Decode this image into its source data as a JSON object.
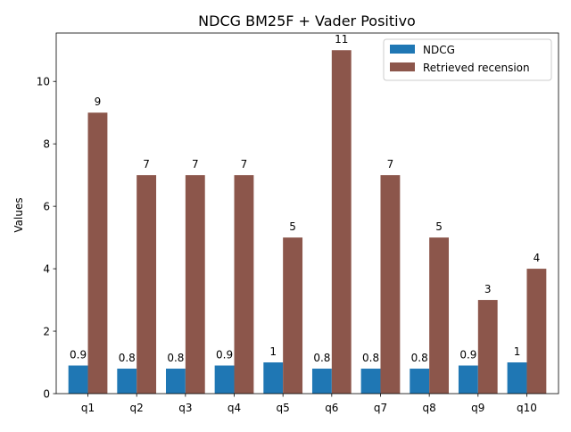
{
  "chart_data": {
    "type": "bar",
    "title": "NDCG BM25F + Vader Positivo",
    "xlabel": "",
    "ylabel": "Values",
    "categories": [
      "q1",
      "q2",
      "q3",
      "q4",
      "q5",
      "q6",
      "q7",
      "q8",
      "q9",
      "q10"
    ],
    "ylim": [
      0,
      11.55
    ],
    "yticks": [
      0,
      2,
      4,
      6,
      8,
      10
    ],
    "grid": false,
    "legend_position": "top-right",
    "series": [
      {
        "name": "NDCG",
        "color": "#1f77b4",
        "values": [
          0.9,
          0.8,
          0.8,
          0.9,
          1,
          0.8,
          0.8,
          0.8,
          0.9,
          1
        ],
        "labels": [
          "0.9",
          "0.8",
          "0.8",
          "0.9",
          "1",
          "0.8",
          "0.8",
          "0.8",
          "0.9",
          "1"
        ]
      },
      {
        "name": "Retrieved recension",
        "color": "#8c564b",
        "values": [
          9,
          7,
          7,
          7,
          5,
          11,
          7,
          5,
          3,
          4
        ],
        "labels": [
          "9",
          "7",
          "7",
          "7",
          "5",
          "11",
          "7",
          "5",
          "3",
          "4"
        ]
      }
    ]
  }
}
